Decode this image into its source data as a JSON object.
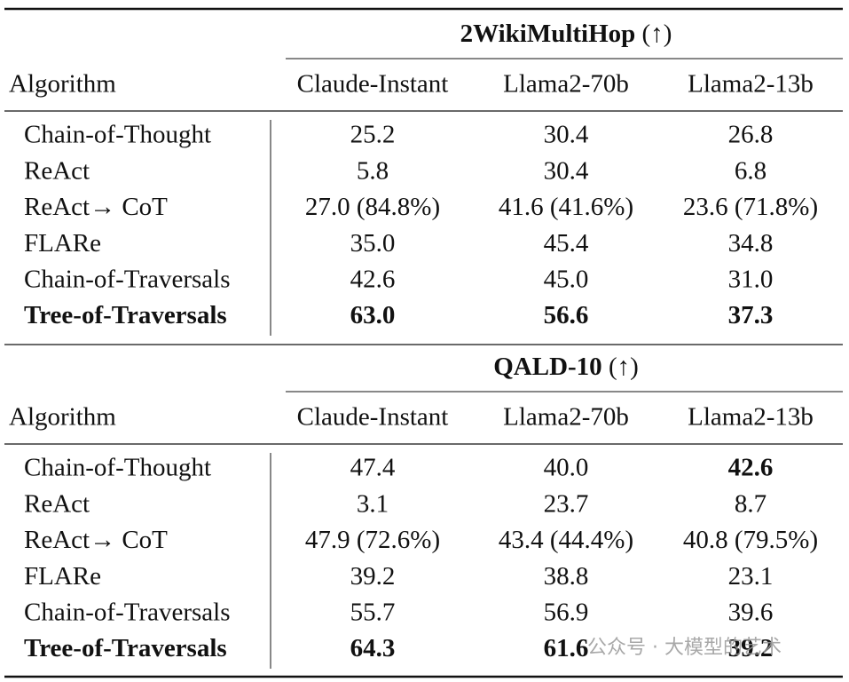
{
  "sections": [
    {
      "title": {
        "name": "2WikiMultiHop",
        "arrow": "(↑)"
      },
      "header": [
        "Algorithm",
        "Claude-Instant",
        "Llama2-70b",
        "Llama2-13b"
      ],
      "rows": [
        {
          "cells": [
            "Chain-of-Thought",
            "25.2",
            "30.4",
            "26.8"
          ],
          "bold": [
            false,
            false,
            false,
            false
          ]
        },
        {
          "cells": [
            "ReAct",
            "5.8",
            "30.4",
            "6.8"
          ],
          "bold": [
            false,
            false,
            false,
            false
          ]
        },
        {
          "cells": [
            "ReAct→ CoT",
            "27.0 (84.8%)",
            "41.6 (41.6%)",
            "23.6 (71.8%)"
          ],
          "bold": [
            false,
            false,
            false,
            false
          ]
        },
        {
          "cells": [
            "FLARe",
            "35.0",
            "45.4",
            "34.8"
          ],
          "bold": [
            false,
            false,
            false,
            false
          ]
        },
        {
          "cells": [
            "Chain-of-Traversals",
            "42.6",
            "45.0",
            "31.0"
          ],
          "bold": [
            false,
            false,
            false,
            false
          ]
        },
        {
          "cells": [
            "Tree-of-Traversals",
            "63.0",
            "56.6",
            "37.3"
          ],
          "bold": [
            true,
            true,
            true,
            true
          ]
        }
      ]
    },
    {
      "title": {
        "name": "QALD-10",
        "arrow": "(↑)"
      },
      "header": [
        "Algorithm",
        "Claude-Instant",
        "Llama2-70b",
        "Llama2-13b"
      ],
      "rows": [
        {
          "cells": [
            "Chain-of-Thought",
            "47.4",
            "40.0",
            "42.6"
          ],
          "bold": [
            false,
            false,
            false,
            true
          ]
        },
        {
          "cells": [
            "ReAct",
            "3.1",
            "23.7",
            "8.7"
          ],
          "bold": [
            false,
            false,
            false,
            false
          ]
        },
        {
          "cells": [
            "ReAct→ CoT",
            "47.9 (72.6%)",
            "43.4 (44.4%)",
            "40.8 (79.5%)"
          ],
          "bold": [
            false,
            false,
            false,
            false
          ]
        },
        {
          "cells": [
            "FLARe",
            "39.2",
            "38.8",
            "23.1"
          ],
          "bold": [
            false,
            false,
            false,
            false
          ]
        },
        {
          "cells": [
            "Chain-of-Traversals",
            "55.7",
            "56.9",
            "39.6"
          ],
          "bold": [
            false,
            false,
            false,
            false
          ]
        },
        {
          "cells": [
            "Tree-of-Traversals",
            "64.3",
            "61.6",
            "39.2"
          ],
          "bold": [
            true,
            true,
            true,
            true
          ]
        }
      ]
    }
  ],
  "watermark": "公众号 · 大模型的艺术"
}
